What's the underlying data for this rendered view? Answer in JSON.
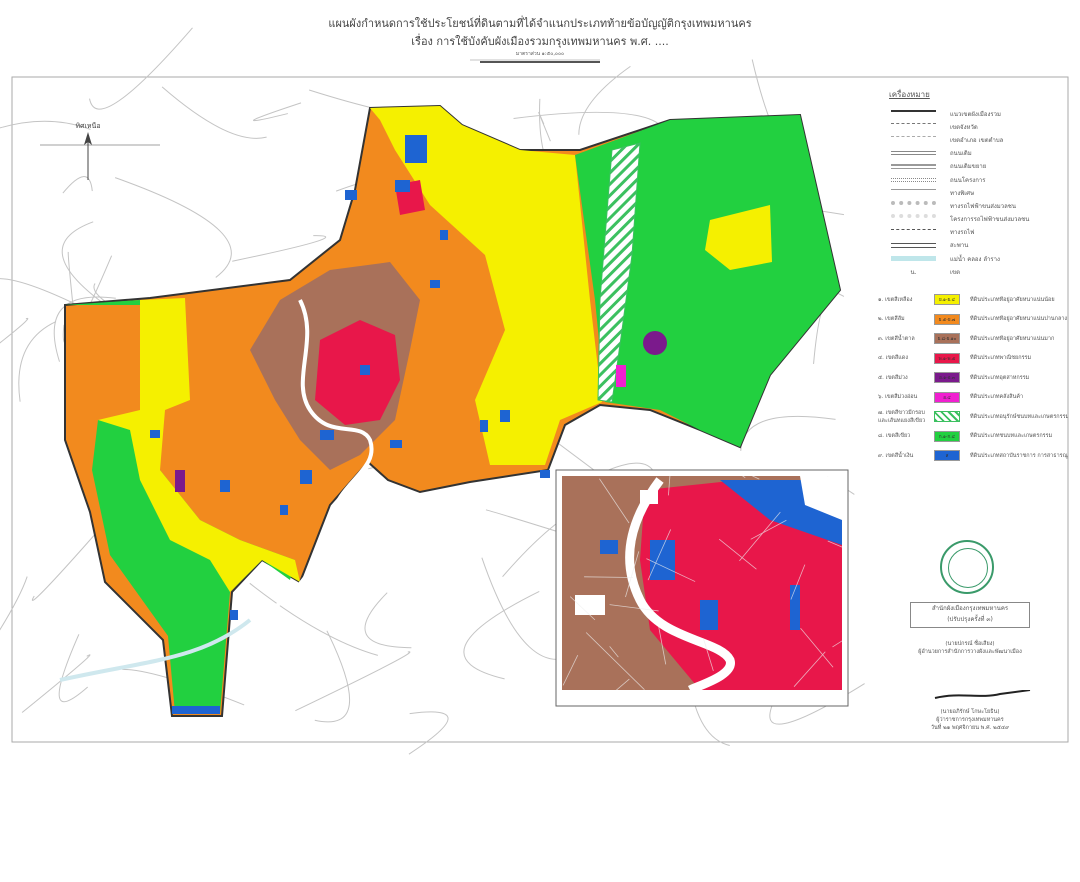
{
  "header": {
    "title": "แผนผังกำหนดการใช้ประโยชน์ที่ดินตามที่ได้จำแนกประเภทท้ายข้อบัญญัติกรุงเทพมหานคร",
    "subtitle": "เรื่อง การใช้บังคับผังเมืองรวมกรุงเทพมหานคร พ.ศ. ....",
    "scale_label": "มาตราส่วน ๑:๕๐,๐๐๐"
  },
  "north_arrow": {
    "label": "ทิศเหนือ"
  },
  "legend": {
    "title": "เครื่องหมาย",
    "items": [
      {
        "label": "แนวเขตผังเมืองรวม",
        "style": "thick"
      },
      {
        "label": "เขตจังหวัด",
        "style": "dash"
      },
      {
        "label": "เขตอำเภอ เขตตำบล",
        "style": "dashdot"
      },
      {
        "label": "ถนนเดิม",
        "style": "double"
      },
      {
        "label": "ถนนเดิมขยาย",
        "style": "doublethick"
      },
      {
        "label": "ถนนโครงการ",
        "style": "dotdouble"
      },
      {
        "label": "ทางพิเศษ",
        "style": "thin"
      },
      {
        "label": "ทางรถไฟฟ้าขนส่งมวลชน",
        "style": "circles"
      },
      {
        "label": "โครงการรถไฟฟ้าขนส่งมวลชน",
        "style": "circles-light"
      },
      {
        "label": "ทางรถไฟ",
        "style": "rail"
      },
      {
        "label": "สะพาน",
        "style": "bridge"
      },
      {
        "label": "แม่น้ำ คลอง ลำราง",
        "style": "water"
      },
      {
        "label": "เขต",
        "symbol": "น.",
        "style": "text"
      }
    ]
  },
  "zones": [
    {
      "code": "๑. เขตสีเหลือง",
      "tag": "ย.๑-ย.๔",
      "color": "#f5f000",
      "desc": "ที่ดินประเภทที่อยู่อาศัยหนาแน่นน้อย"
    },
    {
      "code": "๒. เขตสีส้ม",
      "tag": "ย.๕-ย.๗",
      "color": "#f28a1e",
      "desc": "ที่ดินประเภทที่อยู่อาศัยหนาแน่นปานกลาง"
    },
    {
      "code": "๓. เขตสีน้ำตาล",
      "tag": "ย.๘-ย.๑๐",
      "color": "#a9715a",
      "desc": "ที่ดินประเภทที่อยู่อาศัยหนาแน่นมาก"
    },
    {
      "code": "๔. เขตสีแดง",
      "tag": "พ.๑-พ.๕",
      "color": "#e8174a",
      "desc": "ที่ดินประเภทพาณิชยกรรม"
    },
    {
      "code": "๕. เขตสีม่วง",
      "tag": "อ.๑-อ.๓",
      "color": "#7b1a8c",
      "desc": "ที่ดินประเภทอุตสาหกรรม"
    },
    {
      "code": "๖. เขตสีม่วงอ่อน",
      "tag": "อ.๔",
      "color": "#f020d0",
      "desc": "ที่ดินประเภทคลังสินค้า"
    },
    {
      "code": "๗. เขตสีขาวมีกรอบ",
      "code2": "และเส้นทแยงสีเขียว",
      "tag": "",
      "color": "hatch",
      "desc": "ที่ดินประเภทอนุรักษ์ชนบทและเกษตรกรรม"
    },
    {
      "code": "๘. เขตสีเขียว",
      "tag": "ก.๑-ก.๔",
      "color": "#22d040",
      "desc": "ที่ดินประเภทชนบทและเกษตรกรรม"
    },
    {
      "code": "๙. เขตสีน้ำเงิน",
      "tag": "ส",
      "color": "#1e64d2",
      "desc": "ที่ดินประเภทสถาบันราชการ การสาธารณูปโภคและสาธารณูปการ"
    }
  ],
  "seal_caption": {
    "line1": "สำนักผังเมืองกรุงเทพมหานคร",
    "line2": "(ปรับปรุงครั้งที่ ๓)"
  },
  "signatures": [
    {
      "name": "(นายปกรณ์ ซื่อเสียง)",
      "role": "ผู้อำนวยการสำนักการวางผังและพัฒนาเมือง"
    },
    {
      "name": "(นายอภิรักษ์ โกษะโยธิน)",
      "role": "ผู้ว่าราชการกรุงเทพมหานคร",
      "date": "วันที่ ๒๑ พฤศจิกายน พ.ศ. ๒๕๔๙"
    }
  ],
  "colors": {
    "yellow": "#f5f000",
    "orange": "#f28a1e",
    "brown": "#a9715a",
    "red": "#e8174a",
    "purple": "#7b1a8c",
    "magenta": "#f020d0",
    "green": "#22d040",
    "blue": "#1e64d2"
  }
}
